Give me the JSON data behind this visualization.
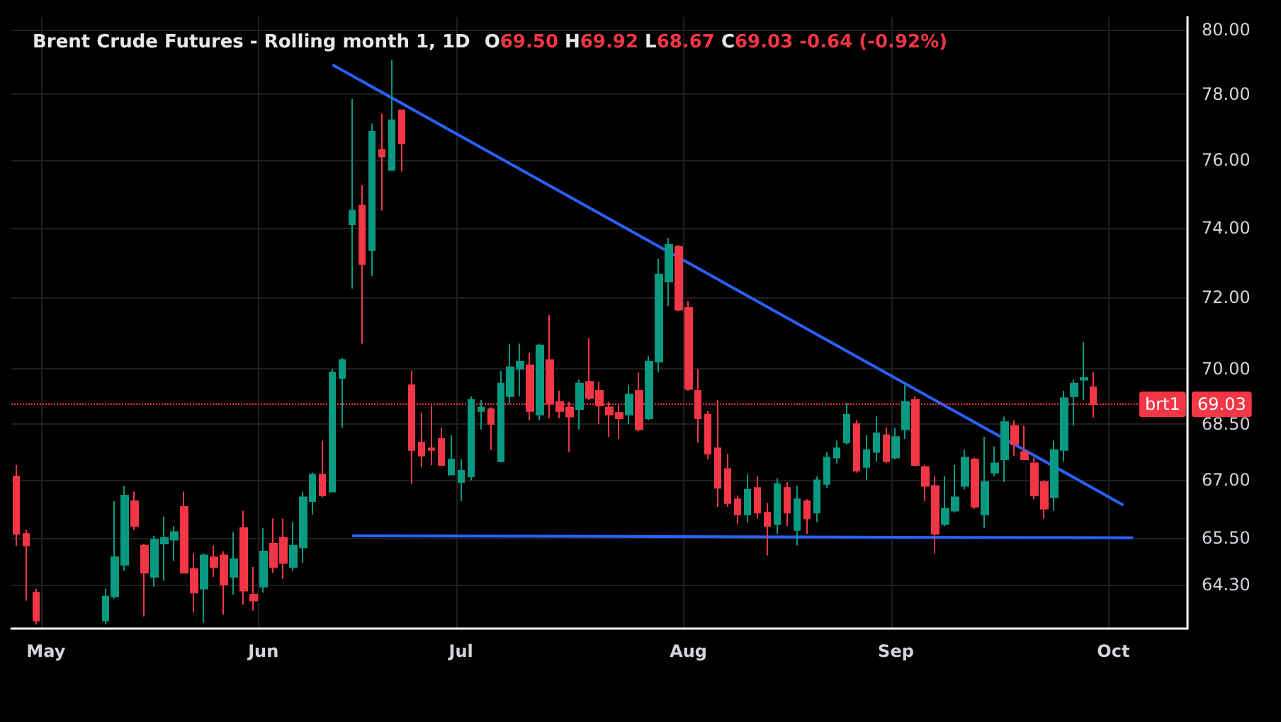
{
  "chart_data": {
    "type": "candlestick",
    "title": "Brent Crude Futures - Rolling month 1, 1D",
    "subtitle": "O69.50 H69.92 L68.67 C69.03 -0.64 (-0.92%)",
    "categories": [
      null,
      null,
      null,
      "May",
      null,
      null,
      null,
      null,
      null,
      null,
      null,
      null,
      null,
      null,
      null,
      null,
      null,
      null,
      null,
      null,
      null,
      null,
      null,
      null,
      null,
      "Jun",
      null,
      null,
      null,
      null,
      null,
      null,
      null,
      null,
      null,
      null,
      null,
      null,
      null,
      null,
      null,
      null,
      null,
      null,
      null,
      "Jul",
      null,
      null,
      null,
      null,
      null,
      null,
      null,
      null,
      null,
      null,
      null,
      null,
      null,
      null,
      null,
      null,
      null,
      null,
      null,
      null,
      null,
      null,
      "Aug",
      null,
      null,
      null,
      null,
      null,
      null,
      null,
      null,
      null,
      null,
      null,
      null,
      null,
      null,
      null,
      null,
      null,
      null,
      null,
      null,
      "Sep",
      null,
      null,
      null,
      null,
      null,
      null,
      null,
      null,
      null,
      null,
      null,
      null,
      null,
      null,
      null,
      null,
      null,
      null,
      null,
      null,
      null,
      "Oct",
      null,
      null,
      null,
      null,
      null,
      null,
      null
    ],
    "ohlc": [
      [
        67.1,
        67.4,
        65.3,
        65.6
      ],
      [
        65.6,
        65.7,
        63.9,
        65.3
      ],
      [
        64.1,
        64.2,
        63.3,
        63.4
      ],
      null,
      null,
      null,
      null,
      null,
      null,
      [
        63.4,
        64.2,
        63.3,
        64.0
      ],
      [
        64.0,
        66.45,
        63.95,
        65.0
      ],
      [
        64.8,
        66.85,
        64.65,
        66.6
      ],
      [
        66.45,
        66.7,
        65.7,
        65.8
      ],
      [
        65.3,
        65.35,
        63.5,
        64.6
      ],
      [
        64.5,
        65.55,
        64.25,
        65.45
      ],
      [
        65.35,
        66.05,
        64.4,
        65.5
      ],
      [
        65.45,
        65.8,
        64.9,
        65.65
      ],
      [
        66.3,
        66.7,
        64.6,
        64.6
      ],
      [
        64.7,
        65.1,
        63.6,
        64.1
      ],
      [
        64.2,
        65.1,
        63.35,
        65.05
      ],
      [
        65.0,
        65.3,
        64.5,
        64.75
      ],
      [
        65.05,
        65.15,
        63.55,
        64.3
      ],
      [
        64.5,
        65.65,
        64.05,
        64.95
      ],
      [
        65.75,
        66.2,
        63.8,
        64.15
      ],
      [
        64.05,
        64.75,
        63.65,
        63.9
      ],
      [
        64.25,
        65.75,
        64.1,
        65.15
      ],
      [
        65.35,
        66.0,
        64.6,
        64.75
      ],
      [
        65.5,
        66.0,
        64.45,
        64.85
      ],
      [
        64.75,
        65.9,
        64.65,
        65.3
      ],
      [
        65.25,
        66.7,
        64.85,
        66.55
      ],
      [
        66.45,
        67.2,
        66.1,
        67.15
      ],
      [
        67.15,
        68.05,
        66.55,
        66.6
      ],
      [
        66.7,
        70.0,
        66.7,
        69.9
      ],
      [
        69.75,
        70.3,
        68.4,
        70.25
      ],
      [
        74.1,
        77.85,
        72.25,
        74.5
      ],
      [
        74.65,
        75.25,
        70.7,
        72.95
      ],
      [
        73.35,
        77.1,
        72.6,
        76.85
      ],
      [
        76.3,
        77.4,
        74.5,
        76.1
      ],
      [
        75.7,
        79.05,
        75.7,
        77.2
      ],
      [
        77.5,
        77.5,
        75.65,
        76.5
      ],
      [
        69.55,
        69.95,
        66.9,
        67.8
      ],
      [
        68.0,
        68.8,
        67.35,
        67.65
      ],
      [
        67.85,
        69.0,
        67.4,
        67.8
      ],
      [
        68.1,
        68.4,
        67.4,
        67.4
      ],
      [
        67.15,
        68.2,
        67.15,
        67.55
      ],
      [
        66.95,
        67.55,
        66.45,
        67.25
      ],
      [
        67.1,
        69.25,
        67.0,
        69.15
      ],
      [
        68.85,
        69.15,
        68.35,
        68.95
      ],
      [
        68.9,
        68.95,
        67.8,
        68.5
      ],
      [
        67.5,
        69.95,
        67.5,
        69.6
      ],
      [
        69.25,
        70.7,
        69.05,
        70.05
      ],
      [
        70.0,
        70.7,
        69.25,
        70.2
      ],
      [
        70.1,
        70.45,
        68.6,
        68.85
      ],
      [
        68.75,
        70.7,
        68.6,
        70.65
      ],
      [
        70.25,
        71.5,
        68.65,
        69.05
      ],
      [
        69.1,
        69.4,
        68.65,
        68.85
      ],
      [
        68.95,
        69.1,
        67.75,
        68.7
      ],
      [
        68.9,
        69.7,
        68.35,
        69.6
      ],
      [
        69.65,
        70.85,
        69.15,
        69.2
      ],
      [
        69.4,
        69.65,
        68.5,
        69.0
      ],
      [
        68.95,
        69.1,
        68.15,
        68.75
      ],
      [
        68.8,
        69.0,
        68.1,
        68.65
      ],
      [
        68.75,
        69.55,
        68.5,
        69.3
      ],
      [
        69.4,
        69.9,
        68.3,
        68.35
      ],
      [
        68.65,
        70.35,
        68.6,
        70.2
      ],
      [
        70.2,
        73.1,
        69.9,
        72.65
      ],
      [
        72.45,
        73.7,
        71.75,
        73.5
      ],
      [
        73.45,
        73.5,
        71.6,
        71.65
      ],
      [
        71.7,
        71.9,
        69.4,
        69.45
      ],
      [
        69.4,
        70.0,
        68.0,
        68.65
      ],
      [
        68.75,
        68.85,
        67.55,
        67.7
      ],
      [
        67.85,
        69.15,
        66.3,
        66.8
      ],
      [
        67.3,
        67.7,
        66.3,
        66.4
      ],
      [
        66.5,
        66.6,
        65.85,
        66.1
      ],
      [
        66.1,
        67.15,
        65.9,
        66.75
      ],
      [
        66.8,
        67.1,
        66.0,
        66.15
      ],
      [
        66.15,
        66.4,
        65.05,
        65.8
      ],
      [
        65.85,
        67.05,
        65.6,
        66.9
      ],
      [
        66.8,
        66.95,
        65.8,
        66.15
      ],
      [
        65.7,
        66.85,
        65.3,
        66.5
      ],
      [
        66.45,
        66.5,
        65.6,
        66.0
      ],
      [
        66.15,
        67.1,
        65.9,
        67.0
      ],
      [
        66.9,
        67.75,
        66.8,
        67.6
      ],
      [
        67.6,
        68.05,
        67.45,
        67.85
      ],
      [
        68.0,
        69.05,
        67.95,
        68.75
      ],
      [
        68.5,
        68.6,
        67.2,
        67.25
      ],
      [
        67.35,
        68.2,
        67.0,
        67.8
      ],
      [
        67.75,
        68.7,
        67.5,
        68.25
      ],
      [
        68.2,
        68.4,
        67.45,
        67.5
      ],
      [
        67.6,
        68.4,
        67.55,
        68.15
      ],
      [
        68.35,
        69.55,
        68.1,
        69.1
      ],
      [
        69.15,
        69.25,
        67.4,
        67.4
      ],
      [
        67.35,
        67.4,
        66.45,
        66.85
      ],
      [
        66.85,
        67.1,
        65.1,
        65.6
      ],
      [
        65.85,
        67.1,
        65.8,
        66.25
      ],
      [
        66.2,
        67.4,
        66.15,
        66.55
      ],
      [
        66.85,
        67.8,
        66.75,
        67.6
      ],
      [
        67.55,
        67.6,
        66.25,
        66.3
      ],
      [
        66.1,
        68.15,
        65.75,
        66.95
      ],
      [
        67.2,
        67.9,
        67.1,
        67.45
      ],
      [
        67.55,
        68.7,
        66.95,
        68.55
      ],
      [
        68.45,
        68.6,
        67.65,
        67.95
      ],
      [
        67.75,
        68.45,
        67.55,
        67.55
      ],
      [
        67.45,
        67.6,
        66.5,
        66.6
      ],
      [
        66.95,
        67.0,
        66.0,
        66.25
      ],
      [
        66.55,
        68.05,
        66.2,
        67.8
      ],
      [
        67.8,
        69.4,
        67.5,
        69.2
      ],
      [
        69.25,
        69.7,
        68.45,
        69.6
      ],
      [
        69.7,
        70.75,
        69.15,
        69.75
      ],
      [
        69.5,
        69.92,
        68.67,
        69.03
      ],
      null,
      null,
      null,
      null,
      null,
      null,
      null,
      null,
      null
    ],
    "series": [
      {
        "type": "line",
        "color": "#2962ff",
        "values": [
          null,
          null,
          null,
          null,
          null,
          null,
          null,
          null,
          null,
          null,
          null,
          null,
          null,
          null,
          null,
          null,
          null,
          null,
          null,
          null,
          null,
          null,
          null,
          null,
          null,
          null,
          null,
          null,
          null,
          null,
          null,
          null,
          78.9,
          null,
          null,
          null,
          null,
          null,
          null,
          null,
          null,
          null,
          null,
          null,
          null,
          null,
          null,
          null,
          null,
          null,
          null,
          null,
          null,
          null,
          null,
          null,
          null,
          null,
          null,
          null,
          null,
          null,
          null,
          null,
          null,
          null,
          null,
          null,
          null,
          null,
          null,
          null,
          null,
          null,
          null,
          null,
          null,
          null,
          null,
          null,
          null,
          null,
          null,
          null,
          null,
          null,
          null,
          null,
          null,
          null,
          null,
          null,
          null,
          null,
          null,
          null,
          null,
          null,
          null,
          null,
          null,
          null,
          null,
          null,
          null,
          null,
          null,
          null,
          null,
          null,
          null,
          null,
          66.35,
          null,
          null,
          null,
          null,
          null,
          null
        ]
      },
      {
        "type": "line",
        "color": "#2962ff",
        "values": [
          null,
          null,
          null,
          null,
          null,
          null,
          null,
          null,
          null,
          null,
          null,
          null,
          null,
          null,
          null,
          null,
          null,
          null,
          null,
          null,
          null,
          null,
          null,
          null,
          null,
          null,
          null,
          null,
          null,
          null,
          null,
          null,
          null,
          null,
          65.55,
          null,
          null,
          null,
          null,
          null,
          null,
          null,
          null,
          null,
          null,
          null,
          null,
          null,
          null,
          null,
          null,
          null,
          null,
          null,
          null,
          null,
          null,
          null,
          null,
          null,
          null,
          null,
          null,
          null,
          null,
          null,
          null,
          null,
          null,
          null,
          null,
          null,
          null,
          null,
          null,
          null,
          null,
          null,
          null,
          null,
          null,
          null,
          null,
          null,
          null,
          null,
          null,
          null,
          null,
          null,
          null,
          null,
          null,
          null,
          null,
          null,
          null,
          null,
          null,
          null,
          null,
          null,
          null,
          null,
          null,
          null,
          null,
          null,
          null,
          null,
          null,
          null,
          null,
          65.5,
          null,
          null,
          null,
          null,
          null
        ]
      }
    ],
    "ylim": [
      63.2,
      80.4
    ],
    "annotations": [
      {
        "text": "69.03",
        "y": 69.03
      }
    ],
    "yticks": [
      {
        "value": 80,
        "label": "80.00"
      },
      {
        "value": 78,
        "label": "78.00"
      },
      {
        "value": 76,
        "label": "76.00"
      },
      {
        "value": 74,
        "label": "74.00"
      },
      {
        "value": 72,
        "label": "72.00"
      },
      {
        "value": 70,
        "label": "70.00"
      },
      {
        "value": 68.5,
        "label": "68.50"
      },
      {
        "value": 67,
        "label": "67.00"
      },
      {
        "value": 65.5,
        "label": "65.50"
      },
      {
        "value": 64.3,
        "label": "64.30"
      }
    ],
    "log": true,
    "grid": true,
    "ref_lines": [
      {
        "axis": "y",
        "value": 69.03,
        "label": "brt1",
        "color": "#f23645",
        "line_style": "dotted"
      }
    ]
  }
}
